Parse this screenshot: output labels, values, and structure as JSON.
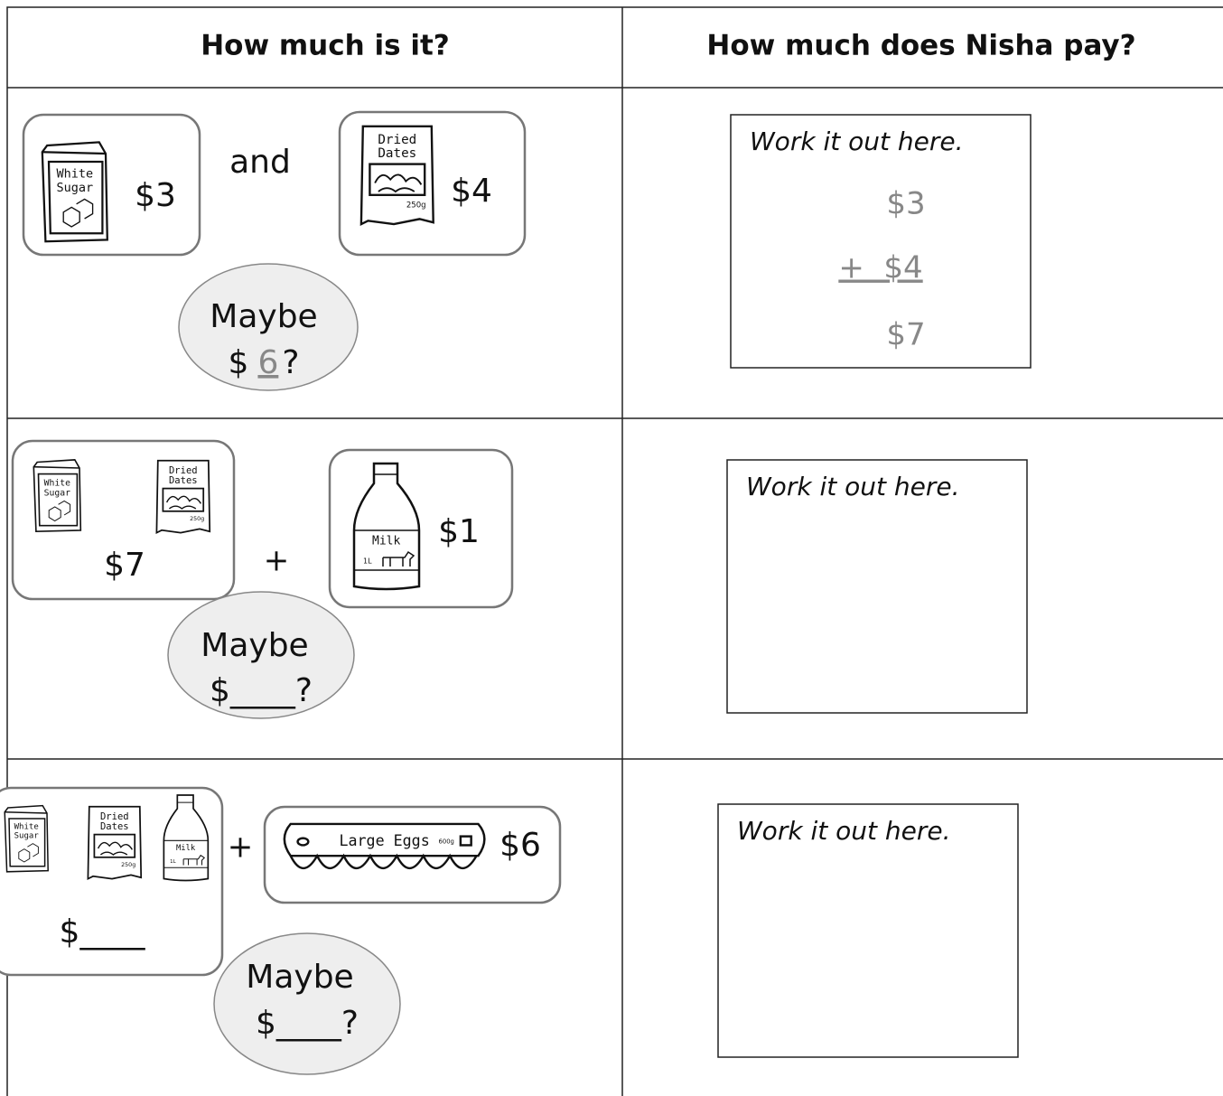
{
  "header": {
    "col1": "How much is it?",
    "col2": "How much does Nisha pay?"
  },
  "rows": [
    {
      "sugar": [
        "White",
        "Sugar"
      ],
      "dates": [
        "Dried",
        "Dates"
      ],
      "dates_weight": "250g",
      "price1": "$3",
      "connector": "and",
      "price2": "$4",
      "maybe": "Maybe",
      "guess_prefix": "$",
      "guess": "6",
      "guess_suffix": "?",
      "work": "Work it out here.",
      "working": [
        "$3",
        "+  $4",
        "$7"
      ]
    },
    {
      "sugar": [
        "White",
        "Sugar"
      ],
      "dates": [
        "Dried",
        "Dates"
      ],
      "dates_weight": "250g",
      "milk": "Milk",
      "milk_volume": "1L",
      "group_price": "$7",
      "connector": "+",
      "price2": "$1",
      "maybe": "Maybe",
      "guess": "$____?",
      "work": "Work it out here."
    },
    {
      "sugar": [
        "White",
        "Sugar"
      ],
      "dates": [
        "Dried",
        "Dates"
      ],
      "dates_weight": "250g",
      "milk": "Milk",
      "milk_volume": "1L",
      "group_price": "$____",
      "connector": "+",
      "eggs": "Large Eggs",
      "eggs_weight": "600g",
      "price2": "$6",
      "maybe": "Maybe",
      "guess": "$____?",
      "work": "Work it out here."
    }
  ]
}
